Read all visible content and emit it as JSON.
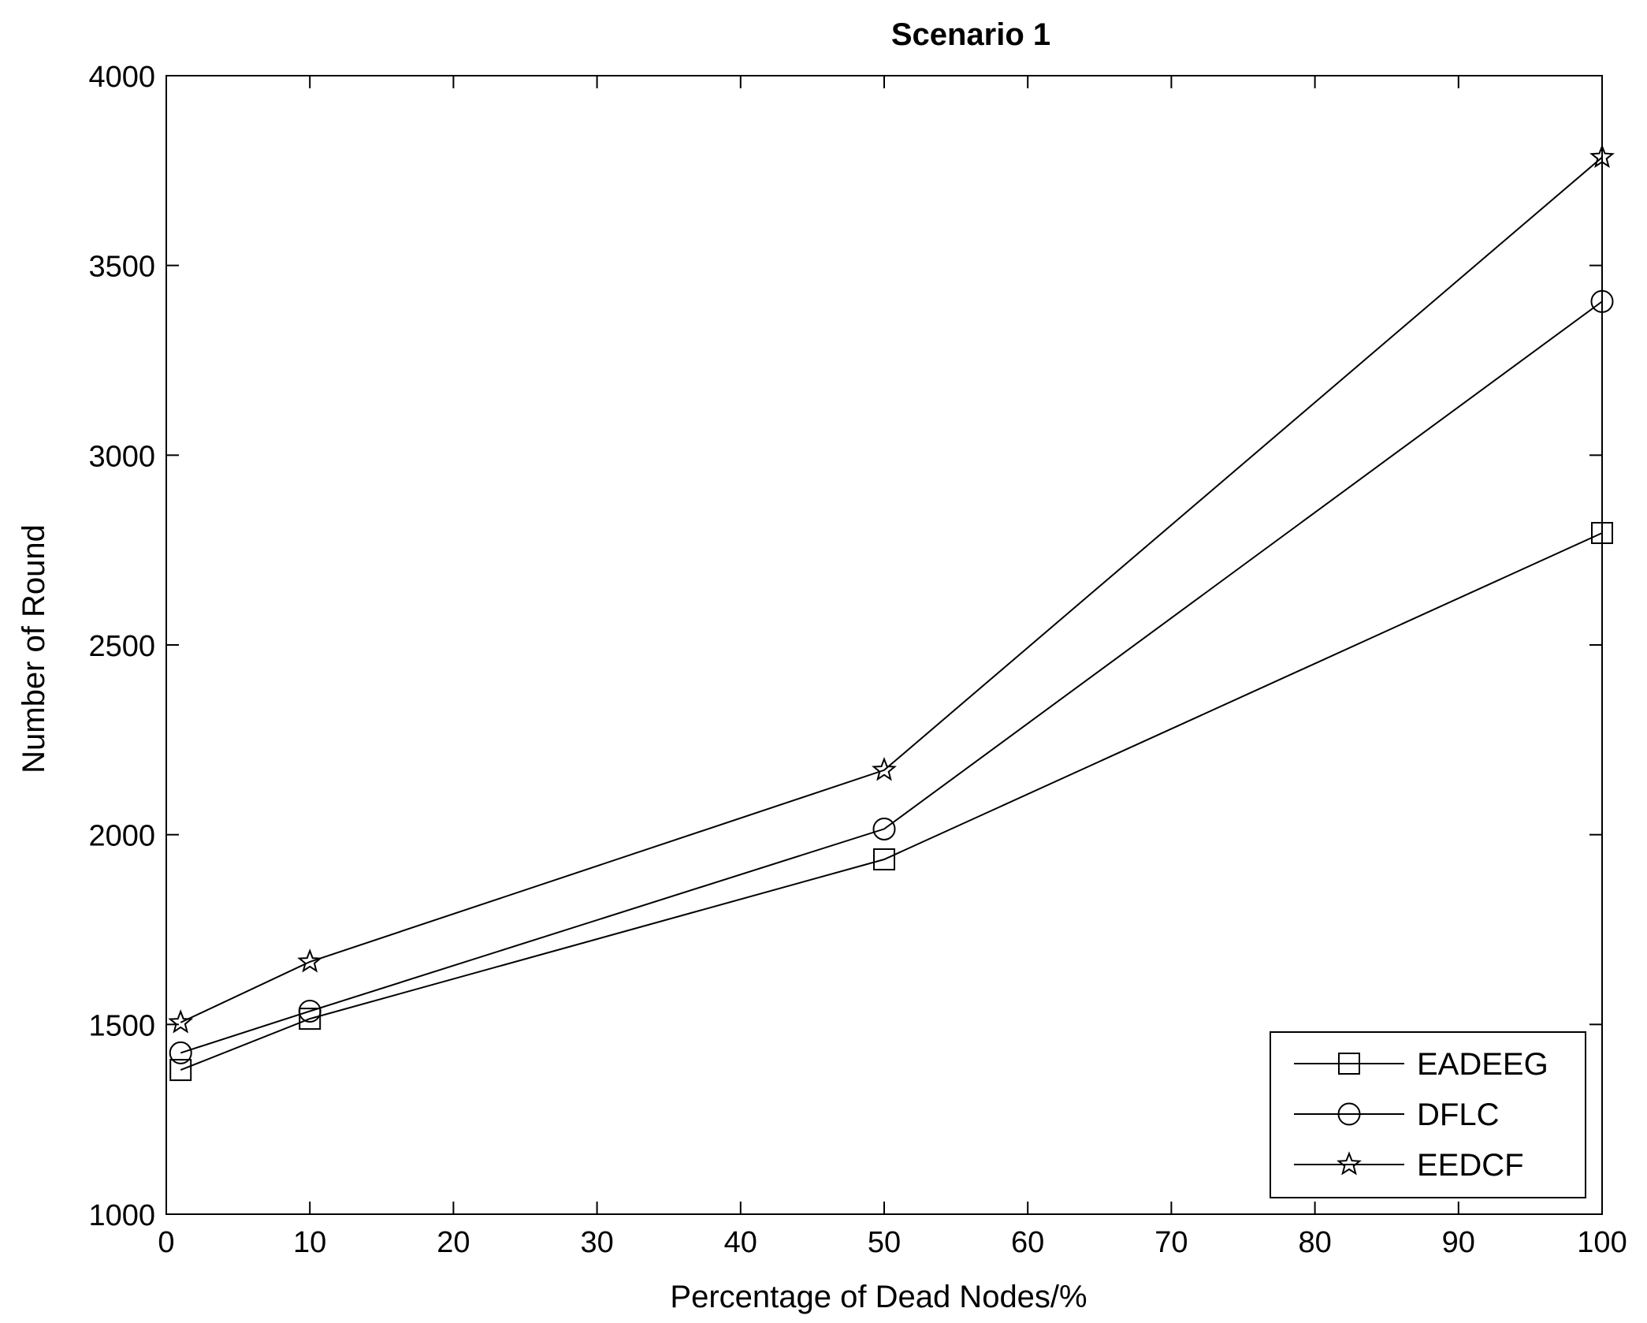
{
  "chart_data": {
    "type": "line",
    "title": "Scenario 1",
    "xlabel": "Percentage of Dead Nodes/%",
    "ylabel": "Number of Round",
    "xlim": [
      0,
      100
    ],
    "ylim": [
      1000,
      4000
    ],
    "x_ticks": [
      0,
      10,
      20,
      30,
      40,
      50,
      60,
      70,
      80,
      90,
      100
    ],
    "y_ticks": [
      1000,
      1500,
      2000,
      2500,
      3000,
      3500,
      4000
    ],
    "grid": false,
    "legend_position": "bottom-right",
    "colors": {
      "line": "#000000",
      "background": "#ffffff"
    },
    "x": [
      1,
      10,
      50,
      100
    ],
    "series": [
      {
        "name": "EADEEG",
        "marker": "square",
        "values": [
          1380,
          1515,
          1935,
          2795
        ]
      },
      {
        "name": "DFLC",
        "marker": "circle",
        "values": [
          1425,
          1535,
          2015,
          3405
        ]
      },
      {
        "name": "EEDCF",
        "marker": "star",
        "values": [
          1505,
          1665,
          2170,
          3785
        ]
      }
    ]
  }
}
